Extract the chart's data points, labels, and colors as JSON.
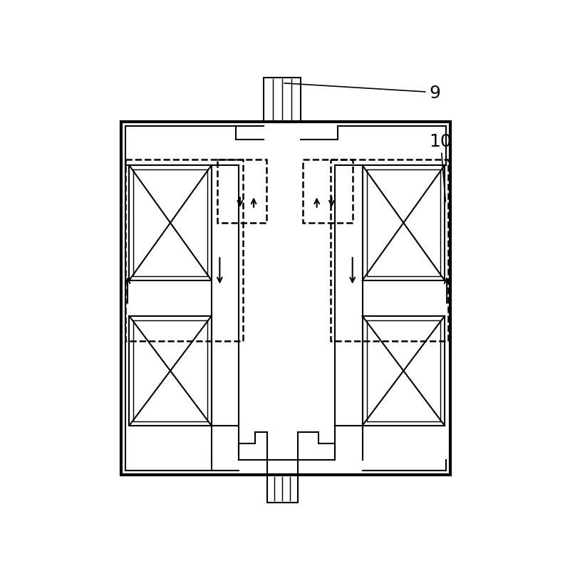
{
  "fig_width": 8.0,
  "fig_height": 8.2,
  "dpi": 100,
  "bg_color": "#ffffff",
  "lc": "#000000",
  "lw": 1.5,
  "tlw": 3.0,
  "dlw": 1.8,
  "label_fontsize": 18,
  "annotation_fontsize": 16,
  "label_9": "9",
  "label_10": "10"
}
